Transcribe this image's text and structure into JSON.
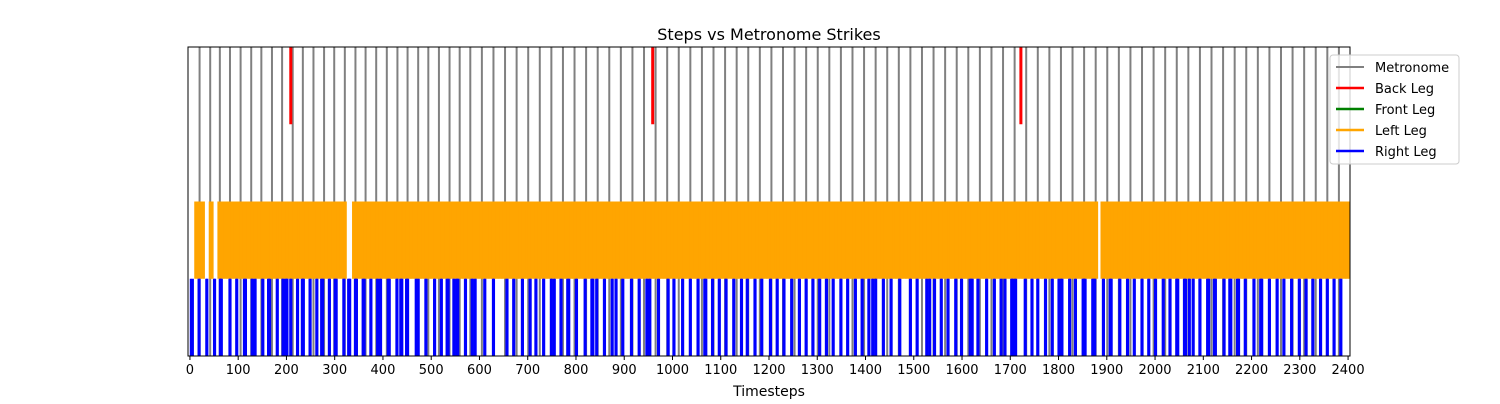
{
  "chart_data": {
    "type": "event-raster",
    "title": "Steps vs Metronome Strikes",
    "xlabel": "Timesteps",
    "ylabel": "",
    "xlim": [
      -4,
      2404
    ],
    "x_ticks": [
      0,
      100,
      200,
      300,
      400,
      500,
      600,
      700,
      800,
      900,
      1000,
      1100,
      1200,
      1300,
      1400,
      1500,
      1600,
      1700,
      1800,
      1900,
      2000,
      2100,
      2200,
      2300,
      2400
    ],
    "grid": false,
    "legend_position": "top-right, outside plot area",
    "series": [
      {
        "name": "Metronome",
        "color": "#808080",
        "row": "full height",
        "rhythm": "a strike roughly every 19-24 timesteps",
        "events": [
          20,
          42,
          62,
          83,
          105,
          127,
          148,
          170,
          191,
          213,
          234,
          256,
          278,
          299,
          321,
          343,
          364,
          386,
          408,
          430,
          451,
          473,
          494,
          516,
          538,
          559,
          581,
          605,
          629,
          653,
          677,
          701,
          725,
          749,
          773,
          797,
          821,
          845,
          869,
          893,
          917,
          941,
          965,
          989,
          1013,
          1037,
          1061,
          1085,
          1109,
          1133,
          1157,
          1181,
          1205,
          1229,
          1253,
          1277,
          1301,
          1325,
          1349,
          1373,
          1397,
          1421,
          1445,
          1469,
          1493,
          1517,
          1541,
          1565,
          1589,
          1613,
          1637,
          1661,
          1685,
          1709,
          1733,
          1757,
          1781,
          1805,
          1829,
          1853,
          1877,
          1901,
          1925,
          1949,
          1973,
          1997,
          2021,
          2045,
          2069,
          2093,
          2117,
          2141,
          2165,
          2189,
          2213,
          2237,
          2261,
          2285,
          2309,
          2333,
          2357,
          2381
        ]
      },
      {
        "name": "Back Leg",
        "color": "#ff0000",
        "row": "top quarter",
        "events": [
          209,
          959,
          1722
        ]
      },
      {
        "name": "Front Leg",
        "color": "#008000",
        "row": "upper-middle quarter",
        "events": []
      },
      {
        "name": "Left Leg",
        "color": "#ffa500",
        "row": "lower-middle quarter",
        "gaps": [
          [
            -4,
            10
          ],
          [
            30,
            40
          ],
          [
            48,
            56
          ],
          [
            326,
            336
          ],
          [
            1882,
            1888
          ]
        ],
        "pattern": "nearly continuous steps; event spacing 2-4 timesteps with short breaks"
      },
      {
        "name": "Right Leg",
        "color": "#0000ff",
        "row": "bottom quarter",
        "events": [
          2,
          6,
          18,
          20,
          34,
          36,
          50,
          52,
          62,
          64,
          66,
          82,
          84,
          96,
          98,
          112,
          114,
          116,
          128,
          130,
          134,
          136,
          150,
          152,
          162,
          164,
          166,
          180,
          182,
          192,
          194,
          198,
          200,
          202,
          208,
          210,
          222,
          224,
          232,
          234,
          236,
          248,
          250,
          262,
          264,
          272,
          274,
          276,
          288,
          290,
          300,
          302,
          304,
          318,
          320,
          328,
          330,
          332,
          342,
          344,
          346,
          358,
          360,
          362,
          374,
          376,
          388,
          390,
          394,
          396,
          410,
          412,
          414,
          428,
          430,
          436,
          438,
          440,
          448,
          450,
          452,
          468,
          470,
          474,
          488,
          490,
          506,
          508,
          520,
          522,
          532,
          534,
          536,
          546,
          548,
          552,
          554,
          556,
          570,
          572,
          584,
          586,
          590,
          592,
          610,
          612,
          628,
          630,
          656,
          658,
          670,
          672,
          688,
          690,
          704,
          706,
          716,
          718,
          732,
          734,
          748,
          750,
          754,
          756,
          768,
          770,
          782,
          784,
          786,
          800,
          802,
          818,
          820,
          832,
          834,
          836,
          842,
          844,
          858,
          860,
          874,
          876,
          882,
          884,
          896,
          898,
          914,
          916,
          930,
          932,
          946,
          948,
          952,
          954,
          970,
          972,
          990,
          992,
          1002,
          1004,
          1020,
          1022,
          1036,
          1038,
          1052,
          1054,
          1066,
          1068,
          1070,
          1082,
          1084,
          1096,
          1098,
          1110,
          1112,
          1126,
          1128,
          1142,
          1144,
          1154,
          1156,
          1170,
          1172,
          1184,
          1186,
          1202,
          1204,
          1216,
          1218,
          1230,
          1232,
          1246,
          1248,
          1262,
          1264,
          1276,
          1278,
          1290,
          1292,
          1304,
          1306,
          1318,
          1320,
          1332,
          1334,
          1348,
          1350,
          1362,
          1364,
          1378,
          1380,
          1392,
          1394,
          1406,
          1408,
          1414,
          1416,
          1420,
          1422,
          1436,
          1438,
          1452,
          1454,
          1470,
          1472,
          1492,
          1494,
          1506,
          1508,
          1526,
          1528,
          1532,
          1534,
          1542,
          1544,
          1556,
          1558,
          1570,
          1572,
          1586,
          1588,
          1598,
          1600,
          1616,
          1618,
          1620,
          1622,
          1632,
          1634,
          1650,
          1652,
          1666,
          1668,
          1680,
          1682,
          1688,
          1690,
          1702,
          1704,
          1706,
          1710,
          1712,
          1730,
          1732,
          1744,
          1746,
          1756,
          1758,
          1772,
          1774,
          1786,
          1788,
          1800,
          1802,
          1806,
          1808,
          1822,
          1824,
          1834,
          1836,
          1850,
          1852,
          1854,
          1856,
          1870,
          1872,
          1874,
          1876,
          1892,
          1894,
          1906,
          1908,
          1910,
          1926,
          1928,
          1942,
          1944,
          1956,
          1958,
          1972,
          1974,
          1986,
          1988,
          2000,
          2002,
          2016,
          2018,
          2030,
          2032,
          2044,
          2046,
          2048,
          2060,
          2062,
          2064,
          2070,
          2072,
          2078,
          2080,
          2092,
          2094,
          2108,
          2110,
          2112,
          2122,
          2124,
          2126,
          2142,
          2144,
          2154,
          2156,
          2158,
          2170,
          2172,
          2174,
          2186,
          2188,
          2204,
          2206,
          2218,
          2220,
          2222,
          2236,
          2238,
          2252,
          2254,
          2266,
          2268,
          2282,
          2284,
          2298,
          2300,
          2312,
          2314,
          2326,
          2328,
          2342,
          2344,
          2356,
          2358,
          2370,
          2372,
          2384,
          2386
        ]
      }
    ]
  }
}
